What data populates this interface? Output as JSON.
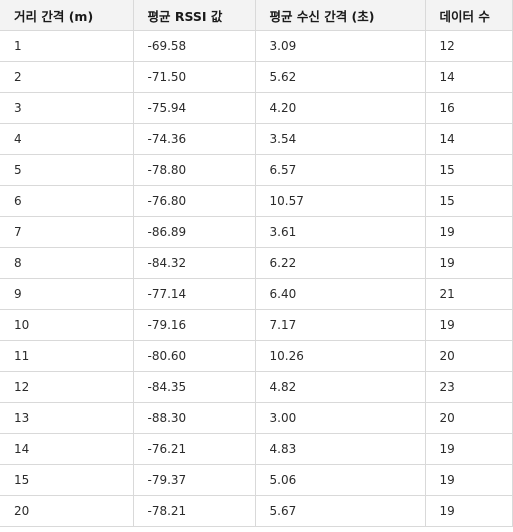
{
  "table": {
    "headers": [
      "거리 간격 (m)",
      "평균 RSSI 값",
      "평균 수신 간격 (초)",
      "데이터 수"
    ],
    "rows": [
      [
        "1",
        "-69.58",
        "3.09",
        "12"
      ],
      [
        "2",
        "-71.50",
        "5.62",
        "14"
      ],
      [
        "3",
        "-75.94",
        "4.20",
        "16"
      ],
      [
        "4",
        "-74.36",
        "3.54",
        "14"
      ],
      [
        "5",
        "-78.80",
        "6.57",
        "15"
      ],
      [
        "6",
        "-76.80",
        "10.57",
        "15"
      ],
      [
        "7",
        "-86.89",
        "3.61",
        "19"
      ],
      [
        "8",
        "-84.32",
        "6.22",
        "19"
      ],
      [
        "9",
        "-77.14",
        "6.40",
        "21"
      ],
      [
        "10",
        "-79.16",
        "7.17",
        "19"
      ],
      [
        "11",
        "-80.60",
        "10.26",
        "20"
      ],
      [
        "12",
        "-84.35",
        "4.82",
        "23"
      ],
      [
        "13",
        "-88.30",
        "3.00",
        "20"
      ],
      [
        "14",
        "-76.21",
        "4.83",
        "19"
      ],
      [
        "15",
        "-79.37",
        "5.06",
        "19"
      ],
      [
        "20",
        "-78.21",
        "5.67",
        "19"
      ]
    ]
  }
}
